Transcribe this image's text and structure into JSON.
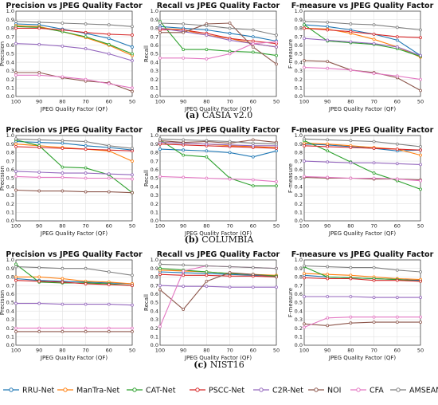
{
  "captions": [
    {
      "label": "(a)",
      "text": "CASIA v2.0"
    },
    {
      "label": "(b)",
      "text": "COLUMBIA"
    },
    {
      "label": "(c)",
      "text": "NIST16"
    }
  ],
  "colors": {
    "RRU-Net": "#1f77b4",
    "ManTra-Net": "#ff7f0e",
    "CAT-Net": "#2ca02c",
    "PSCC-Net": "#d62728",
    "C2R-Net": "#9467bd",
    "NOI": "#8c564b",
    "CFA": "#e377c2",
    "AMSEANet": "#7f7f7f"
  },
  "legend": [
    "RRU-Net",
    "ManTra-Net",
    "CAT-Net",
    "PSCC-Net",
    "C2R-Net",
    "NOI",
    "CFA",
    "AMSEANet"
  ],
  "chart_data": [
    {
      "type": "line",
      "dataset": "CASIA v2.0",
      "title": "Precision vs JPEG Quality Factor",
      "xlabel": "JPEG Quality Factor (QF)",
      "ylabel": "Precision",
      "x": [
        100,
        90,
        80,
        70,
        60,
        50
      ],
      "ylim": [
        0,
        1.0
      ],
      "series": [
        {
          "name": "RRU-Net",
          "values": [
            0.85,
            0.84,
            0.79,
            0.74,
            0.68,
            0.58
          ]
        },
        {
          "name": "ManTra-Net",
          "values": [
            0.83,
            0.82,
            0.76,
            0.69,
            0.6,
            0.48
          ]
        },
        {
          "name": "CAT-Net",
          "values": [
            0.82,
            0.81,
            0.76,
            0.7,
            0.61,
            0.5
          ]
        },
        {
          "name": "PSCC-Net",
          "values": [
            0.8,
            0.8,
            0.78,
            0.75,
            0.73,
            0.72
          ]
        },
        {
          "name": "C2R-Net",
          "values": [
            0.62,
            0.61,
            0.59,
            0.56,
            0.5,
            0.42
          ]
        },
        {
          "name": "NOI",
          "values": [
            0.28,
            0.28,
            0.22,
            0.18,
            0.16,
            0.06
          ]
        },
        {
          "name": "CFA",
          "values": [
            0.25,
            0.25,
            0.23,
            0.2,
            0.15,
            0.1
          ]
        },
        {
          "name": "AMSEANet",
          "values": [
            0.88,
            0.87,
            0.86,
            0.85,
            0.84,
            0.82
          ]
        }
      ]
    },
    {
      "type": "line",
      "dataset": "CASIA v2.0",
      "title": "Recall vs JPEG Quality Factor",
      "xlabel": "JPEG Quality Factor (QF)",
      "ylabel": "Recall",
      "x": [
        100,
        90,
        80,
        70,
        60,
        50
      ],
      "ylim": [
        0,
        1.0
      ],
      "series": [
        {
          "name": "RRU-Net",
          "values": [
            0.82,
            0.8,
            0.78,
            0.74,
            0.7,
            0.65
          ]
        },
        {
          "name": "ManTra-Net",
          "values": [
            0.8,
            0.78,
            0.72,
            0.68,
            0.62,
            0.58
          ]
        },
        {
          "name": "CAT-Net",
          "values": [
            0.88,
            0.55,
            0.55,
            0.53,
            0.52,
            0.48
          ]
        },
        {
          "name": "PSCC-Net",
          "values": [
            0.78,
            0.78,
            0.74,
            0.68,
            0.65,
            0.62
          ]
        },
        {
          "name": "C2R-Net",
          "values": [
            0.8,
            0.76,
            0.72,
            0.66,
            0.62,
            0.58
          ]
        },
        {
          "name": "NOI",
          "values": [
            0.75,
            0.75,
            0.85,
            0.86,
            0.58,
            0.38
          ]
        },
        {
          "name": "CFA",
          "values": [
            0.45,
            0.45,
            0.44,
            0.5,
            0.62,
            0.64
          ]
        },
        {
          "name": "AMSEANet",
          "values": [
            0.86,
            0.85,
            0.83,
            0.8,
            0.78,
            0.72
          ]
        }
      ]
    },
    {
      "type": "line",
      "dataset": "CASIA v2.0",
      "title": "F-measure vs JPEG Quality Factor",
      "xlabel": "JPEG Quality Factor (QF)",
      "ylabel": "F-measure",
      "x": [
        100,
        90,
        80,
        70,
        60,
        50
      ],
      "ylim": [
        0,
        1.0
      ],
      "series": [
        {
          "name": "RRU-Net",
          "values": [
            0.84,
            0.82,
            0.78,
            0.73,
            0.66,
            0.48
          ]
        },
        {
          "name": "ManTra-Net",
          "values": [
            0.8,
            0.79,
            0.74,
            0.67,
            0.58,
            0.46
          ]
        },
        {
          "name": "CAT-Net",
          "values": [
            0.84,
            0.65,
            0.63,
            0.61,
            0.56,
            0.47
          ]
        },
        {
          "name": "PSCC-Net",
          "values": [
            0.8,
            0.78,
            0.76,
            0.73,
            0.7,
            0.69
          ]
        },
        {
          "name": "C2R-Net",
          "values": [
            0.68,
            0.66,
            0.64,
            0.62,
            0.58,
            0.48
          ]
        },
        {
          "name": "NOI",
          "values": [
            0.42,
            0.41,
            0.31,
            0.28,
            0.22,
            0.07
          ]
        },
        {
          "name": "CFA",
          "values": [
            0.34,
            0.33,
            0.31,
            0.27,
            0.24,
            0.2
          ]
        },
        {
          "name": "AMSEANet",
          "values": [
            0.88,
            0.87,
            0.85,
            0.84,
            0.81,
            0.78
          ]
        }
      ]
    },
    {
      "type": "line",
      "dataset": "COLUMBIA",
      "title": "Precision vs JPEG Quality Factor",
      "xlabel": "JPEG Quality Factor (QF)",
      "ylabel": "Precision",
      "x": [
        100,
        90,
        80,
        70,
        60,
        50
      ],
      "ylim": [
        0,
        1.0
      ],
      "series": [
        {
          "name": "RRU-Net",
          "values": [
            0.93,
            0.92,
            0.91,
            0.88,
            0.86,
            0.83
          ]
        },
        {
          "name": "ManTra-Net",
          "values": [
            0.9,
            0.88,
            0.86,
            0.84,
            0.82,
            0.7
          ]
        },
        {
          "name": "CAT-Net",
          "values": [
            0.95,
            0.88,
            0.63,
            0.62,
            0.54,
            0.33
          ]
        },
        {
          "name": "PSCC-Net",
          "values": [
            0.87,
            0.86,
            0.85,
            0.84,
            0.83,
            0.82
          ]
        },
        {
          "name": "C2R-Net",
          "values": [
            0.58,
            0.57,
            0.56,
            0.56,
            0.55,
            0.54
          ]
        },
        {
          "name": "NOI",
          "values": [
            0.36,
            0.35,
            0.35,
            0.34,
            0.34,
            0.33
          ]
        },
        {
          "name": "CFA",
          "values": [
            0.52,
            0.51,
            0.51,
            0.5,
            0.5,
            0.49
          ]
        },
        {
          "name": "AMSEANet",
          "values": [
            0.96,
            0.95,
            0.94,
            0.93,
            0.88,
            0.85
          ]
        }
      ]
    },
    {
      "type": "line",
      "dataset": "COLUMBIA",
      "title": "Recall vs JPEG Quality Factor",
      "xlabel": "JPEG Quality Factor (QF)",
      "ylabel": "Recall",
      "x": [
        100,
        90,
        80,
        70,
        60,
        50
      ],
      "ylim": [
        0,
        1.0
      ],
      "series": [
        {
          "name": "RRU-Net",
          "values": [
            0.84,
            0.83,
            0.82,
            0.8,
            0.75,
            0.82
          ]
        },
        {
          "name": "ManTra-Net",
          "values": [
            0.92,
            0.91,
            0.9,
            0.88,
            0.87,
            0.86
          ]
        },
        {
          "name": "CAT-Net",
          "values": [
            0.95,
            0.77,
            0.75,
            0.5,
            0.41,
            0.41
          ]
        },
        {
          "name": "PSCC-Net",
          "values": [
            0.9,
            0.89,
            0.88,
            0.87,
            0.86,
            0.85
          ]
        },
        {
          "name": "C2R-Net",
          "values": [
            0.92,
            0.91,
            0.9,
            0.89,
            0.88,
            0.88
          ]
        },
        {
          "name": "NOI",
          "values": [
            0.94,
            0.92,
            0.93,
            0.91,
            0.95,
            0.92
          ]
        },
        {
          "name": "CFA",
          "values": [
            0.52,
            0.51,
            0.5,
            0.49,
            0.48,
            0.46
          ]
        },
        {
          "name": "AMSEANet",
          "values": [
            0.96,
            0.95,
            0.94,
            0.93,
            0.91,
            0.9
          ]
        }
      ]
    },
    {
      "type": "line",
      "dataset": "COLUMBIA",
      "title": "F-measure vs JPEG Quality Factor",
      "xlabel": "JPEG Quality Factor (QF)",
      "ylabel": "F-measure",
      "x": [
        100,
        90,
        80,
        70,
        60,
        50
      ],
      "ylim": [
        0,
        1.0
      ],
      "series": [
        {
          "name": "RRU-Net",
          "values": [
            0.9,
            0.89,
            0.87,
            0.85,
            0.82,
            0.83
          ]
        },
        {
          "name": "ManTra-Net",
          "values": [
            0.91,
            0.9,
            0.88,
            0.86,
            0.84,
            0.77
          ]
        },
        {
          "name": "CAT-Net",
          "values": [
            0.94,
            0.82,
            0.69,
            0.56,
            0.47,
            0.37
          ]
        },
        {
          "name": "PSCC-Net",
          "values": [
            0.88,
            0.87,
            0.86,
            0.85,
            0.84,
            0.83
          ]
        },
        {
          "name": "C2R-Net",
          "values": [
            0.7,
            0.69,
            0.68,
            0.68,
            0.67,
            0.66
          ]
        },
        {
          "name": "NOI",
          "values": [
            0.51,
            0.5,
            0.5,
            0.49,
            0.49,
            0.48
          ]
        },
        {
          "name": "CFA",
          "values": [
            0.52,
            0.51,
            0.5,
            0.5,
            0.49,
            0.47
          ]
        },
        {
          "name": "AMSEANet",
          "values": [
            0.96,
            0.95,
            0.94,
            0.93,
            0.9,
            0.87
          ]
        }
      ]
    },
    {
      "type": "line",
      "dataset": "NIST16",
      "title": "Precision vs JPEG Quality Factor",
      "xlabel": "JPEG Quality Factor (QF)",
      "ylabel": "Precision",
      "x": [
        100,
        90,
        80,
        70,
        60,
        50
      ],
      "ylim": [
        0,
        1.0
      ],
      "series": [
        {
          "name": "RRU-Net",
          "values": [
            0.78,
            0.76,
            0.75,
            0.74,
            0.73,
            0.72
          ]
        },
        {
          "name": "ManTra-Net",
          "values": [
            0.8,
            0.8,
            0.78,
            0.75,
            0.74,
            0.72
          ]
        },
        {
          "name": "CAT-Net",
          "values": [
            0.95,
            0.74,
            0.73,
            0.73,
            0.72,
            0.7
          ]
        },
        {
          "name": "PSCC-Net",
          "values": [
            0.76,
            0.75,
            0.74,
            0.72,
            0.71,
            0.7
          ]
        },
        {
          "name": "C2R-Net",
          "values": [
            0.49,
            0.49,
            0.48,
            0.48,
            0.48,
            0.47
          ]
        },
        {
          "name": "NOI",
          "values": [
            0.16,
            0.16,
            0.16,
            0.16,
            0.16,
            0.16
          ]
        },
        {
          "name": "CFA",
          "values": [
            0.2,
            0.2,
            0.2,
            0.2,
            0.2,
            0.2
          ]
        },
        {
          "name": "AMSEANet",
          "values": [
            0.92,
            0.91,
            0.9,
            0.9,
            0.86,
            0.82
          ]
        }
      ]
    },
    {
      "type": "line",
      "dataset": "NIST16",
      "title": "Recall vs JPEG Quality Factor",
      "xlabel": "JPEG Quality Factor (QF)",
      "ylabel": "Recall",
      "x": [
        100,
        90,
        80,
        70,
        60,
        50
      ],
      "ylim": [
        0,
        1.0
      ],
      "series": [
        {
          "name": "RRU-Net",
          "values": [
            0.86,
            0.85,
            0.84,
            0.83,
            0.82,
            0.81
          ]
        },
        {
          "name": "ManTra-Net",
          "values": [
            0.88,
            0.87,
            0.86,
            0.84,
            0.83,
            0.82
          ]
        },
        {
          "name": "CAT-Net",
          "values": [
            0.9,
            0.88,
            0.86,
            0.84,
            0.83,
            0.81
          ]
        },
        {
          "name": "PSCC-Net",
          "values": [
            0.83,
            0.82,
            0.82,
            0.81,
            0.81,
            0.8
          ]
        },
        {
          "name": "C2R-Net",
          "values": [
            0.7,
            0.69,
            0.69,
            0.68,
            0.68,
            0.68
          ]
        },
        {
          "name": "NOI",
          "values": [
            0.65,
            0.42,
            0.75,
            0.85,
            0.83,
            0.8
          ]
        },
        {
          "name": "CFA",
          "values": [
            0.22,
            0.87,
            0.93,
            0.92,
            0.91,
            0.9
          ]
        },
        {
          "name": "AMSEANet",
          "values": [
            0.95,
            0.94,
            0.93,
            0.92,
            0.91,
            0.9
          ]
        }
      ]
    },
    {
      "type": "line",
      "dataset": "NIST16",
      "title": "F-measure vs JPEG Quality Factor",
      "xlabel": "JPEG Quality Factor (QF)",
      "ylabel": "F-measure",
      "x": [
        100,
        90,
        80,
        70,
        60,
        50
      ],
      "ylim": [
        0,
        1.0
      ],
      "series": [
        {
          "name": "RRU-Net",
          "values": [
            0.82,
            0.8,
            0.79,
            0.78,
            0.77,
            0.76
          ]
        },
        {
          "name": "ManTra-Net",
          "values": [
            0.84,
            0.83,
            0.82,
            0.8,
            0.78,
            0.77
          ]
        },
        {
          "name": "CAT-Net",
          "values": [
            0.92,
            0.8,
            0.79,
            0.78,
            0.77,
            0.75
          ]
        },
        {
          "name": "PSCC-Net",
          "values": [
            0.79,
            0.78,
            0.78,
            0.76,
            0.76,
            0.75
          ]
        },
        {
          "name": "C2R-Net",
          "values": [
            0.57,
            0.57,
            0.57,
            0.56,
            0.56,
            0.56
          ]
        },
        {
          "name": "NOI",
          "values": [
            0.25,
            0.23,
            0.26,
            0.27,
            0.27,
            0.27
          ]
        },
        {
          "name": "CFA",
          "values": [
            0.21,
            0.32,
            0.33,
            0.33,
            0.33,
            0.33
          ]
        },
        {
          "name": "AMSEANet",
          "values": [
            0.93,
            0.92,
            0.91,
            0.91,
            0.88,
            0.86
          ]
        }
      ]
    }
  ]
}
